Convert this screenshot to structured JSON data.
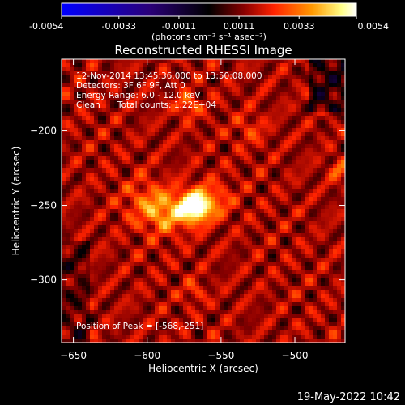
{
  "chart_data": {
    "type": "heatmap",
    "title": "Reconstructed RHESSI Image",
    "colorbar": {
      "ticks": [
        "-0.0054",
        "-0.0033",
        "-0.0011",
        "0.0011",
        "0.0033",
        "0.0054"
      ],
      "range": [
        -0.0054,
        0.0054
      ],
      "unit_label": "(photons cm⁻² s⁻¹ asec⁻²)"
    },
    "xlabel": "Heliocentric X (arcsec)",
    "ylabel": "Heliocentric Y (arcsec)",
    "xlim": [
      -658,
      -466
    ],
    "ylim": [
      -342,
      -152
    ],
    "xticks": [
      -650,
      -600,
      -550,
      -500
    ],
    "yticks": [
      -200,
      -250,
      -300
    ],
    "xtick_labels": [
      "−650",
      "−600",
      "−550",
      "−500"
    ],
    "ytick_labels": [
      "−200",
      "−250",
      "−300"
    ],
    "annotations": [
      "12-Nov-2014 13:45:36.000 to 13:50:08.000",
      "Detectors: 3F 6F 9F, Att 0",
      "Energy Range: 6.0 - 12.0 keV",
      "Clean",
      "Total counts: 1.22E+04"
    ],
    "peak_annotation": "Position of Peak = [-568,-251]",
    "peak": [
      -568,
      -251
    ],
    "colormap": [
      "#0000ff",
      "#2a0078",
      "#000000",
      "#8a0000",
      "#ff2200",
      "#ff9900",
      "#ffff88",
      "#ffffff"
    ]
  },
  "footer": {
    "timestamp": "19-May-2022 10:42"
  }
}
